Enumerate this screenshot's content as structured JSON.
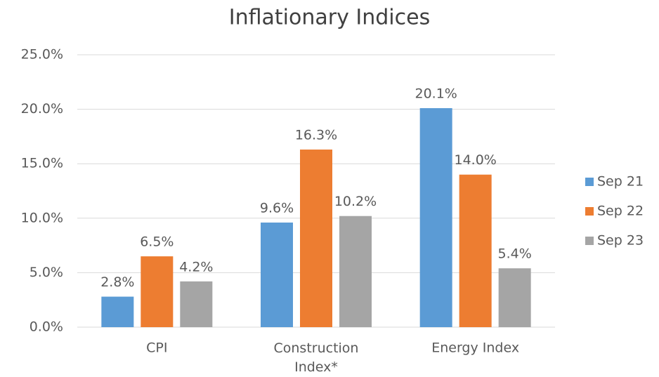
{
  "chart_data": {
    "type": "bar",
    "title": "Inflationary Indices",
    "categories": [
      "CPI",
      "Construction Index*",
      "Energy Index"
    ],
    "series": [
      {
        "name": "Sep 21",
        "color": "#5b9bd5",
        "values": [
          2.8,
          9.6,
          20.1
        ],
        "value_labels": [
          "2.8%",
          "9.6%",
          "20.1%"
        ]
      },
      {
        "name": "Sep 22",
        "color": "#ed7d31",
        "values": [
          6.5,
          16.3,
          14.0
        ],
        "value_labels": [
          "6.5%",
          "16.3%",
          "14.0%"
        ]
      },
      {
        "name": "Sep 23",
        "color": "#a5a5a5",
        "values": [
          4.2,
          10.2,
          5.4
        ],
        "value_labels": [
          "4.2%",
          "10.2%",
          "5.4%"
        ]
      }
    ],
    "ylim": [
      0,
      25
    ],
    "yticks": [
      {
        "value": 0,
        "label": "0.0%"
      },
      {
        "value": 5,
        "label": "5.0%"
      },
      {
        "value": 10,
        "label": "10.0%"
      },
      {
        "value": 15,
        "label": "15.0%"
      },
      {
        "value": 20,
        "label": "20.0%"
      },
      {
        "value": 25,
        "label": "25.0%"
      }
    ],
    "grid": true,
    "legend": "right"
  }
}
